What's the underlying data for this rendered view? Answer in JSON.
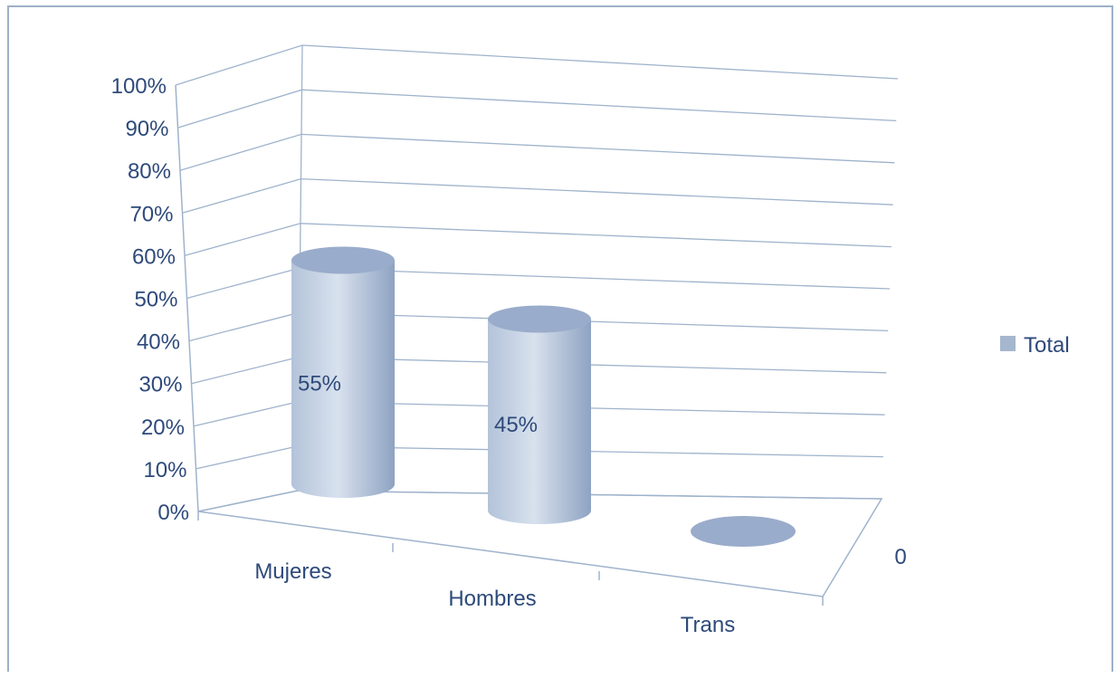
{
  "chart_data": {
    "type": "bar",
    "style": "3d-cylinder",
    "categories": [
      "Mujeres",
      "Hombres",
      "Trans"
    ],
    "series": [
      {
        "name": "Total",
        "values": [
          0.55,
          0.45,
          0
        ]
      }
    ],
    "data_labels": [
      "55%",
      "45%",
      ""
    ],
    "y_ticks": [
      "0%",
      "10%",
      "20%",
      "30%",
      "40%",
      "50%",
      "60%",
      "70%",
      "80%",
      "90%",
      "100%"
    ],
    "ylim": [
      0,
      1
    ],
    "depth_axis_label": "0",
    "legend": {
      "position": "right",
      "entries": [
        "Total"
      ]
    },
    "grid": true,
    "colors": {
      "axis_text": "#2e4a7a",
      "grid": "#9fb3cc",
      "cylinder_light": "#d8e1ee",
      "cylinder_mid": "#b3c3d9",
      "cylinder_dark": "#8ea3c2",
      "cylinder_top": "#9aaccb",
      "legend_swatch": "#a5b6cf",
      "frame": "#9db0c8"
    }
  }
}
